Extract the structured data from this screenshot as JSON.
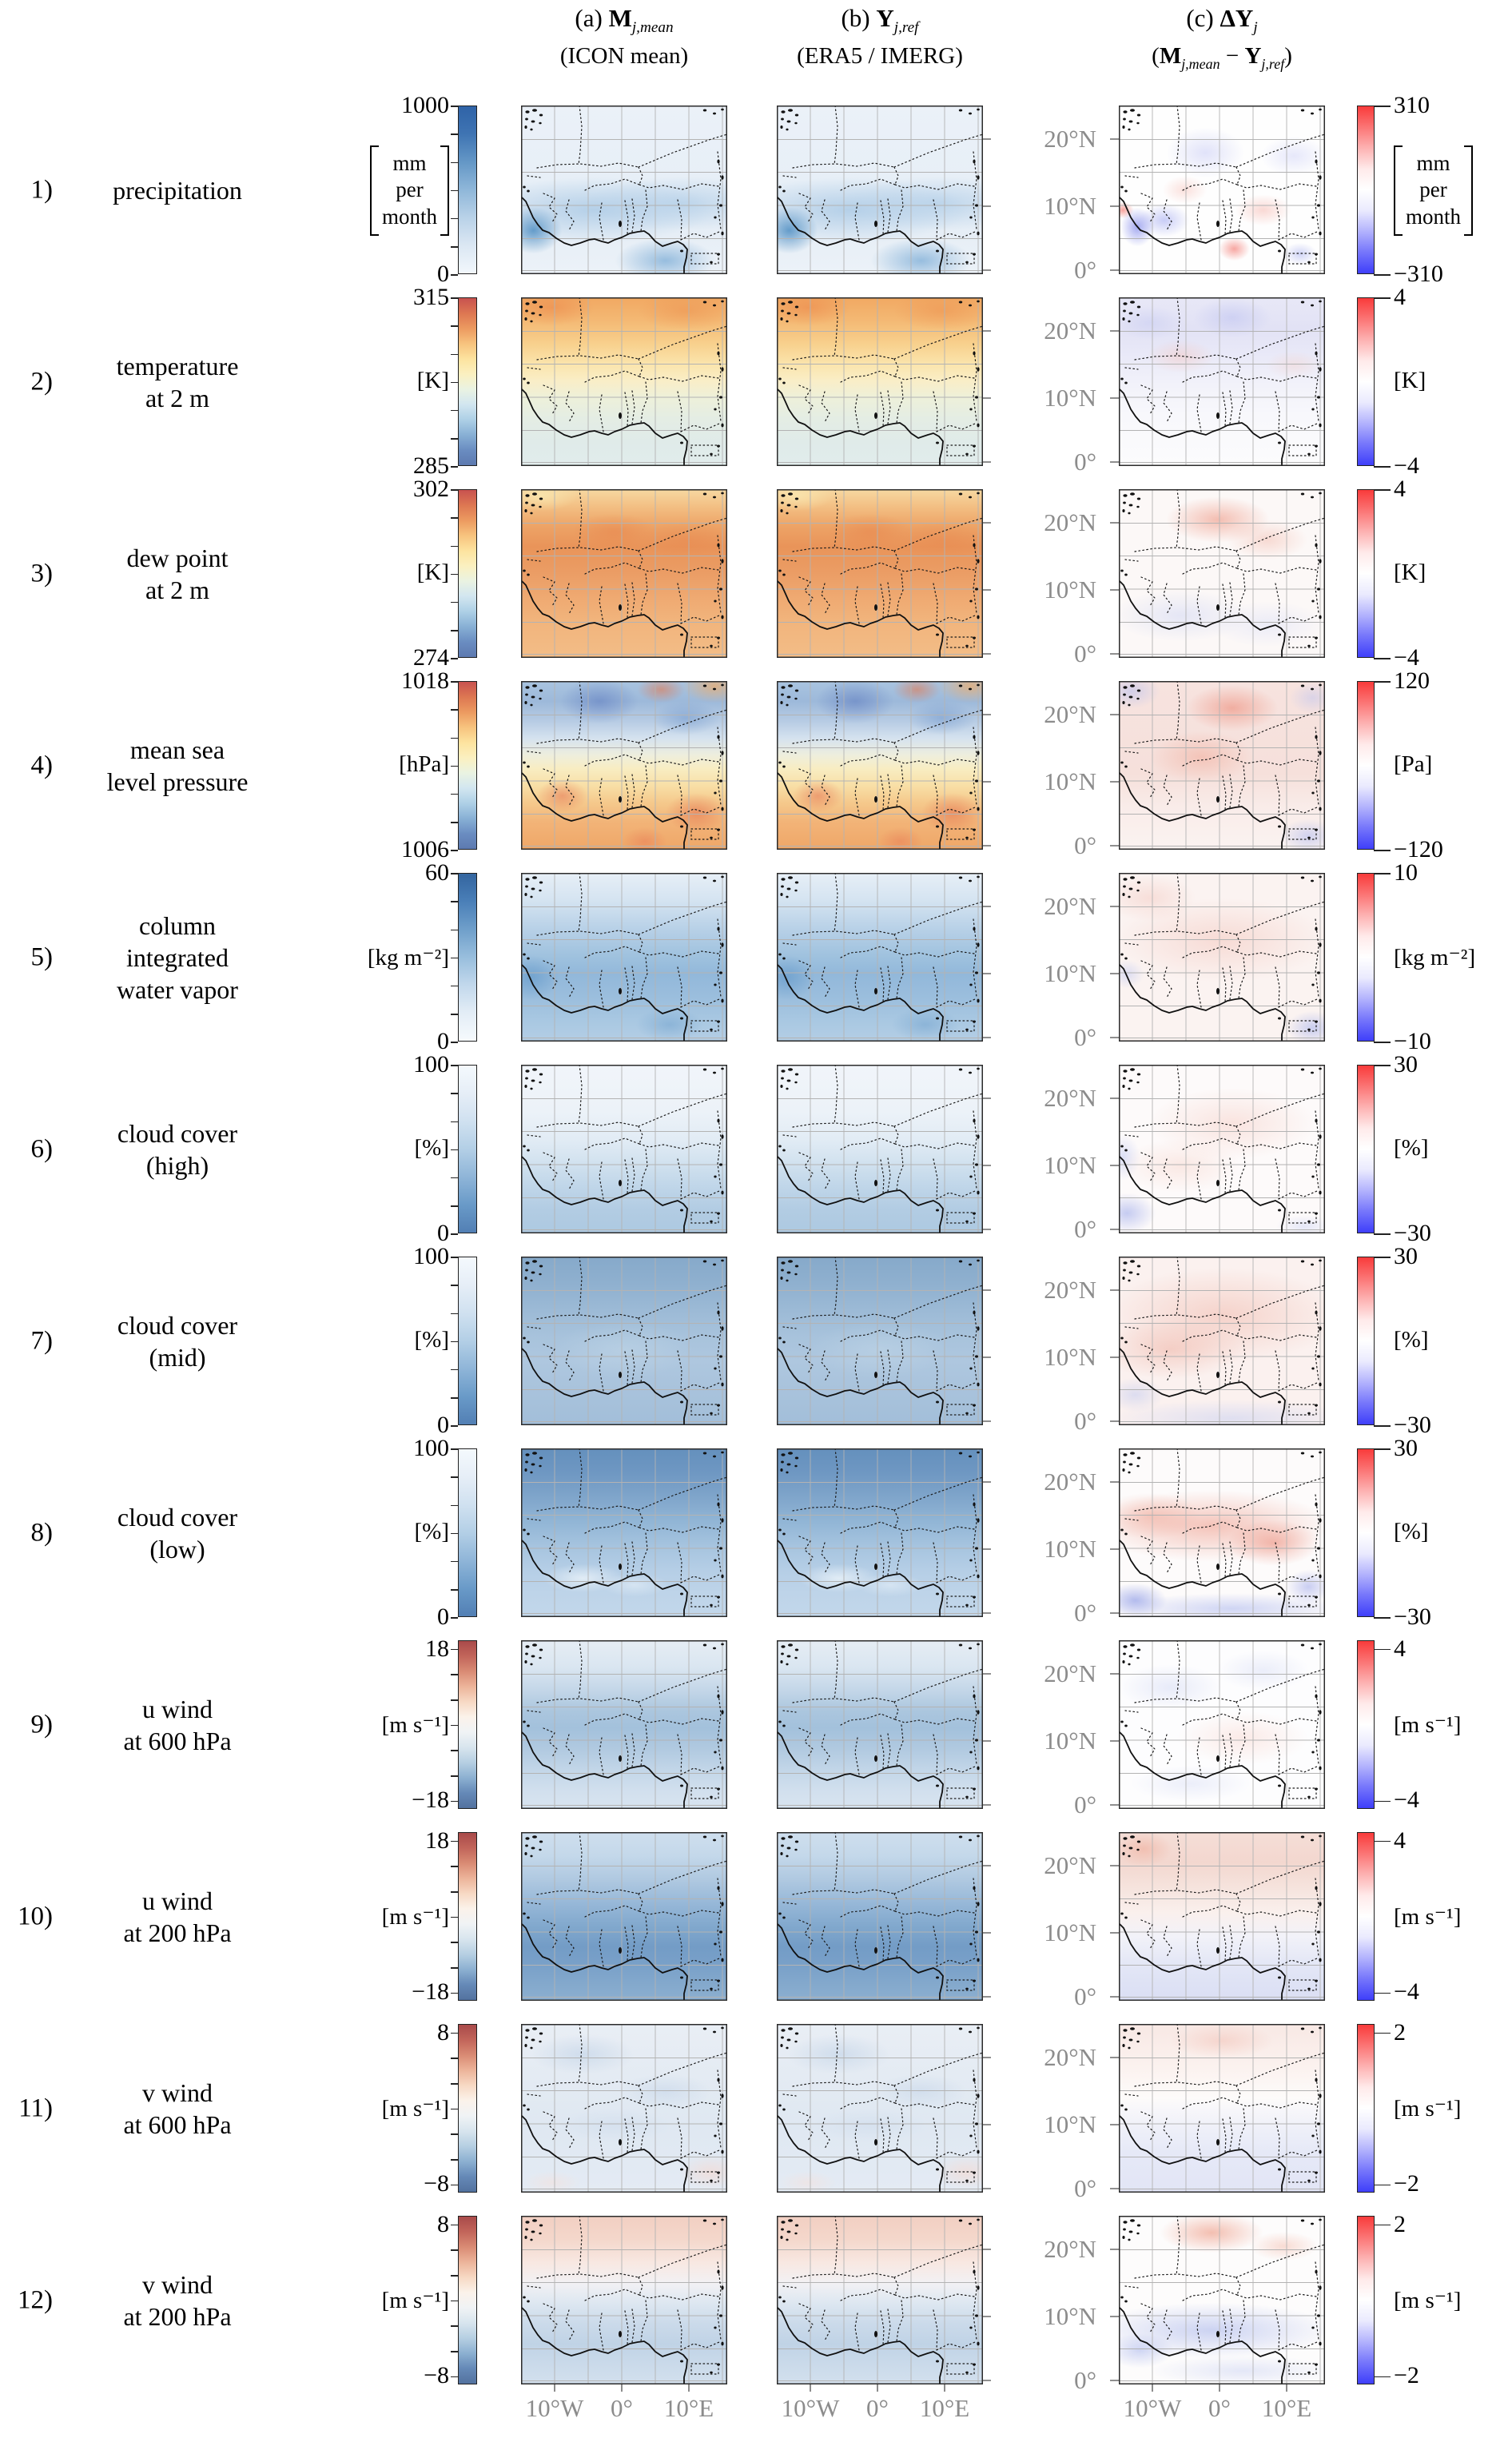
{
  "figure": {
    "headers": {
      "a": {
        "prefix": "(a) ",
        "symbol": "M",
        "sub": "j,mean",
        "line2": "(ICON mean)"
      },
      "b": {
        "prefix": "(b) ",
        "symbol": "Y",
        "sub": "j,ref",
        "line2": "(ERA5 / IMERG)"
      },
      "c": {
        "prefix": "(c) ",
        "symbol": "ΔY",
        "sub": "j",
        "line2": {
          "open": "(",
          "sym1": "M",
          "sub1": "j,mean",
          "mid": " − ",
          "sym2": "Y",
          "sub2": "j,ref",
          "close": ")"
        }
      }
    },
    "axes": {
      "lat": [
        "20°N",
        "10°N",
        "0°"
      ],
      "lon": [
        "10°W",
        "0°",
        "10°E"
      ]
    },
    "rows": [
      {
        "num": "1)",
        "label": [
          "precipitation"
        ],
        "left": {
          "max": "1000",
          "min": "0",
          "unit_lines": [
            "mm",
            "per",
            "month"
          ],
          "inset": false,
          "stops": [
            "#2f63a7",
            "#3f74b3",
            "#6497c6",
            "#8fb7d9",
            "#b9d2e8",
            "#dbe7f3",
            "#f2f7fc"
          ]
        },
        "right": {
          "max": "310",
          "min": "−310",
          "unit_lines": [
            "mm",
            "per",
            "month"
          ],
          "inset": false,
          "stops": [
            "#f93b3b",
            "#fb7575",
            "#fdb2b2",
            "#ffeaea",
            "#ffffff",
            "#eaeafe",
            "#b2b2fd",
            "#7575fb",
            "#3f3ffa"
          ]
        }
      },
      {
        "num": "2)",
        "label": [
          "temperature",
          "at 2 m"
        ],
        "left": {
          "max": "315",
          "min": "285",
          "unit_lines": [
            "[K]"
          ],
          "inset": false,
          "stops": [
            "#c8524f",
            "#dd7752",
            "#ec9a60",
            "#f7c37e",
            "#fde39f",
            "#fbf0c0",
            "#eaf3e2",
            "#d2e6f0",
            "#aed0e6",
            "#88b0d5",
            "#6a8dc1",
            "#5d7ab0"
          ]
        },
        "right": {
          "max": "4",
          "min": "−4",
          "unit_lines": [
            "[K]"
          ],
          "inset": false,
          "stops": [
            "#f93b3b",
            "#fb7575",
            "#fdb2b2",
            "#ffeaea",
            "#ffffff",
            "#eaeafe",
            "#b2b2fd",
            "#7575fb",
            "#3f3ffa"
          ]
        }
      },
      {
        "num": "3)",
        "label": [
          "dew point",
          "at 2 m"
        ],
        "left": {
          "max": "302",
          "min": "274",
          "unit_lines": [
            "[K]"
          ],
          "inset": false,
          "stops": [
            "#c8524f",
            "#dd7752",
            "#ec9a60",
            "#f7c37e",
            "#fde39f",
            "#fbf0c0",
            "#eaf3e2",
            "#d2e6f0",
            "#aed0e6",
            "#88b0d5",
            "#6a8dc1",
            "#5d7ab0"
          ]
        },
        "right": {
          "max": "4",
          "min": "−4",
          "unit_lines": [
            "[K]"
          ],
          "inset": false,
          "stops": [
            "#f93b3b",
            "#fb7575",
            "#fdb2b2",
            "#ffeaea",
            "#ffffff",
            "#eaeafe",
            "#b2b2fd",
            "#7575fb",
            "#3f3ffa"
          ]
        }
      },
      {
        "num": "4)",
        "label": [
          "mean sea",
          "level pressure"
        ],
        "left": {
          "max": "1018",
          "min": "1006",
          "unit_lines": [
            "[hPa]"
          ],
          "inset": false,
          "stops": [
            "#c8524f",
            "#dd7752",
            "#ec9a60",
            "#f7c37e",
            "#fde39f",
            "#fbf0c0",
            "#eaf3e2",
            "#d2e6f0",
            "#aed0e6",
            "#88b0d5",
            "#6a8dc1",
            "#5d7ab0"
          ]
        },
        "right": {
          "max": "120",
          "min": "−120",
          "unit_lines": [
            "[Pa]"
          ],
          "inset": false,
          "stops": [
            "#f93b3b",
            "#fb7575",
            "#fdb2b2",
            "#ffeaea",
            "#ffffff",
            "#eaeafe",
            "#b2b2fd",
            "#7575fb",
            "#3f3ffa"
          ]
        }
      },
      {
        "num": "5)",
        "label": [
          "column",
          "integrated",
          "water vapor"
        ],
        "left": {
          "max": "60",
          "min": "0",
          "unit_lines": [
            "[kg m⁻²]"
          ],
          "inset": false,
          "stops": [
            "#33659f",
            "#4a7fb8",
            "#6f9fca",
            "#98bedd",
            "#c2d8ec",
            "#e3edf6",
            "#f6fafd"
          ]
        },
        "right": {
          "max": "10",
          "min": "−10",
          "unit_lines": [
            "[kg m⁻²]"
          ],
          "inset": false,
          "stops": [
            "#f93b3b",
            "#fb7575",
            "#fdb2b2",
            "#ffeaea",
            "#ffffff",
            "#eaeafe",
            "#b2b2fd",
            "#7575fb",
            "#3f3ffa"
          ]
        }
      },
      {
        "num": "6)",
        "label": [
          "cloud cover",
          "(high)"
        ],
        "left": {
          "max": "100",
          "min": "0",
          "unit_lines": [
            "[%]"
          ],
          "inset": false,
          "stops": [
            "#f4f9fd",
            "#e6eef7",
            "#d0e1f0",
            "#b3cfe6",
            "#8fb5d8",
            "#699ac8",
            "#527fb4"
          ]
        },
        "right": {
          "max": "30",
          "min": "−30",
          "unit_lines": [
            "[%]"
          ],
          "inset": false,
          "stops": [
            "#f93b3b",
            "#fb7575",
            "#fdb2b2",
            "#ffeaea",
            "#ffffff",
            "#eaeafe",
            "#b2b2fd",
            "#7575fb",
            "#3f3ffa"
          ]
        }
      },
      {
        "num": "7)",
        "label": [
          "cloud cover",
          "(mid)"
        ],
        "left": {
          "max": "100",
          "min": "0",
          "unit_lines": [
            "[%]"
          ],
          "inset": false,
          "stops": [
            "#f4f9fd",
            "#e6eef7",
            "#d0e1f0",
            "#b3cfe6",
            "#8fb5d8",
            "#699ac8",
            "#527fb4"
          ]
        },
        "right": {
          "max": "30",
          "min": "−30",
          "unit_lines": [
            "[%]"
          ],
          "inset": false,
          "stops": [
            "#f93b3b",
            "#fb7575",
            "#fdb2b2",
            "#ffeaea",
            "#ffffff",
            "#eaeafe",
            "#b2b2fd",
            "#7575fb",
            "#3f3ffa"
          ]
        }
      },
      {
        "num": "8)",
        "label": [
          "cloud cover",
          "(low)"
        ],
        "left": {
          "max": "100",
          "min": "0",
          "unit_lines": [
            "[%]"
          ],
          "inset": false,
          "stops": [
            "#f4f9fd",
            "#e6eef7",
            "#d0e1f0",
            "#b3cfe6",
            "#8fb5d8",
            "#699ac8",
            "#527fb4"
          ]
        },
        "right": {
          "max": "30",
          "min": "−30",
          "unit_lines": [
            "[%]"
          ],
          "inset": false,
          "stops": [
            "#f93b3b",
            "#fb7575",
            "#fdb2b2",
            "#ffeaea",
            "#ffffff",
            "#eaeafe",
            "#b2b2fd",
            "#7575fb",
            "#3f3ffa"
          ]
        }
      },
      {
        "num": "9)",
        "label": [
          "u wind",
          "at 600 hPa"
        ],
        "left": {
          "max": "18",
          "min": "−18",
          "unit_lines": [
            "[m s⁻¹]"
          ],
          "inset": true,
          "stops": [
            "#a94a4a",
            "#c2655a",
            "#d98b74",
            "#ecb49a",
            "#f7d9c4",
            "#fbf2ea",
            "#f0f3f5",
            "#d8e5ee",
            "#b6cfe2",
            "#8cb0d1",
            "#6589b7",
            "#53729f"
          ]
        },
        "right": {
          "max": "4",
          "min": "−4",
          "unit_lines": [
            "[m s⁻¹]"
          ],
          "inset": true,
          "stops": [
            "#f93b3b",
            "#fb7575",
            "#fdb2b2",
            "#ffeaea",
            "#ffffff",
            "#eaeafe",
            "#b2b2fd",
            "#7575fb",
            "#3f3ffa"
          ]
        }
      },
      {
        "num": "10)",
        "label": [
          "u wind",
          "at 200 hPa"
        ],
        "left": {
          "max": "18",
          "min": "−18",
          "unit_lines": [
            "[m s⁻¹]"
          ],
          "inset": true,
          "stops": [
            "#a94a4a",
            "#c2655a",
            "#d98b74",
            "#ecb49a",
            "#f7d9c4",
            "#fbf2ea",
            "#f0f3f5",
            "#d8e5ee",
            "#b6cfe2",
            "#8cb0d1",
            "#6589b7",
            "#53729f"
          ]
        },
        "right": {
          "max": "4",
          "min": "−4",
          "unit_lines": [
            "[m s⁻¹]"
          ],
          "inset": true,
          "stops": [
            "#f93b3b",
            "#fb7575",
            "#fdb2b2",
            "#ffeaea",
            "#ffffff",
            "#eaeafe",
            "#b2b2fd",
            "#7575fb",
            "#3f3ffa"
          ]
        }
      },
      {
        "num": "11)",
        "label": [
          "v wind",
          "at 600 hPa"
        ],
        "left": {
          "max": "8",
          "min": "−8",
          "unit_lines": [
            "[m s⁻¹]"
          ],
          "inset": true,
          "stops": [
            "#a94a4a",
            "#c2655a",
            "#d98b74",
            "#ecb49a",
            "#f7d9c4",
            "#fbf2ea",
            "#f0f3f5",
            "#d8e5ee",
            "#b6cfe2",
            "#8cb0d1",
            "#6589b7",
            "#53729f"
          ]
        },
        "right": {
          "max": "2",
          "min": "−2",
          "unit_lines": [
            "[m s⁻¹]"
          ],
          "inset": true,
          "stops": [
            "#f93b3b",
            "#fb7575",
            "#fdb2b2",
            "#ffeaea",
            "#ffffff",
            "#eaeafe",
            "#b2b2fd",
            "#7575fb",
            "#3f3ffa"
          ]
        }
      },
      {
        "num": "12)",
        "label": [
          "v wind",
          "at 200 hPa"
        ],
        "left": {
          "max": "8",
          "min": "−8",
          "unit_lines": [
            "[m s⁻¹]"
          ],
          "inset": true,
          "stops": [
            "#a94a4a",
            "#c2655a",
            "#d98b74",
            "#ecb49a",
            "#f7d9c4",
            "#fbf2ea",
            "#f0f3f5",
            "#d8e5ee",
            "#b6cfe2",
            "#8cb0d1",
            "#6589b7",
            "#53729f"
          ]
        },
        "right": {
          "max": "2",
          "min": "−2",
          "unit_lines": [
            "[m s⁻¹]"
          ],
          "inset": true,
          "stops": [
            "#f93b3b",
            "#fb7575",
            "#fdb2b2",
            "#ffeaea",
            "#ffffff",
            "#eaeafe",
            "#b2b2fd",
            "#7575fb",
            "#3f3ffa"
          ]
        }
      }
    ],
    "colors": {
      "axis_label_gray": "#8c8c8c",
      "map_grid": "#b3b3b3",
      "coastline": "#111111",
      "diff_pos": "#f93b3b",
      "diff_neg": "#3f3ffa"
    }
  },
  "chart_data": {
    "type": "heatmap",
    "title": "12 variables × 3 panels: ICON ensemble mean, ERA5/IMERG reference, and their difference over West Africa",
    "columns": [
      "(a) M_j,mean (ICON mean)",
      "(b) Y_j,ref (ERA5 / IMERG)",
      "(c) ΔY_j (M_j,mean − Y_j,ref)"
    ],
    "xlabel_ticks": [
      "10°W",
      "0°",
      "10°E"
    ],
    "ylabel_ticks": [
      "0°",
      "10°N",
      "20°N"
    ],
    "grid": true,
    "legend_position": "colorbars left (absolute scale) and right (difference scale) of each row",
    "variables": [
      {
        "row": 1,
        "name": "precipitation",
        "unit": "mm per month",
        "scale_range": [
          0,
          1000
        ],
        "diff_range": [
          -310,
          310
        ],
        "scale_colormap": "Blues (dark=high)",
        "diff_colormap": "blue-white-red"
      },
      {
        "row": 2,
        "name": "temperature at 2 m",
        "unit": "K",
        "scale_range": [
          285,
          315
        ],
        "diff_range": [
          -4,
          4
        ],
        "scale_colormap": "blue-yellow-red",
        "diff_colormap": "blue-white-red"
      },
      {
        "row": 3,
        "name": "dew point at 2 m",
        "unit": "K",
        "scale_range": [
          274,
          302
        ],
        "diff_range": [
          -4,
          4
        ],
        "scale_colormap": "blue-yellow-red",
        "diff_colormap": "blue-white-red"
      },
      {
        "row": 4,
        "name": "mean sea level pressure",
        "unit": "hPa (diff: Pa)",
        "scale_range": [
          1006,
          1018
        ],
        "diff_range": [
          -120,
          120
        ],
        "scale_colormap": "blue-yellow-red",
        "diff_colormap": "blue-white-red"
      },
      {
        "row": 5,
        "name": "column integrated water vapor",
        "unit": "kg m⁻²",
        "scale_range": [
          0,
          60
        ],
        "diff_range": [
          -10,
          10
        ],
        "scale_colormap": "Blues (dark=high)",
        "diff_colormap": "blue-white-red"
      },
      {
        "row": 6,
        "name": "cloud cover (high)",
        "unit": "%",
        "scale_range": [
          0,
          100
        ],
        "diff_range": [
          -30,
          30
        ],
        "scale_colormap": "Blues reversed (dark=low)",
        "diff_colormap": "blue-white-red"
      },
      {
        "row": 7,
        "name": "cloud cover (mid)",
        "unit": "%",
        "scale_range": [
          0,
          100
        ],
        "diff_range": [
          -30,
          30
        ],
        "scale_colormap": "Blues reversed (dark=low)",
        "diff_colormap": "blue-white-red"
      },
      {
        "row": 8,
        "name": "cloud cover (low)",
        "unit": "%",
        "scale_range": [
          0,
          100
        ],
        "diff_range": [
          -30,
          30
        ],
        "scale_colormap": "Blues reversed (dark=low)",
        "diff_colormap": "blue-white-red"
      },
      {
        "row": 9,
        "name": "u wind at 600 hPa",
        "unit": "m s⁻¹",
        "scale_range": [
          -18,
          18
        ],
        "diff_range": [
          -4,
          4
        ],
        "scale_colormap": "red-white-blue diverging",
        "diff_colormap": "blue-white-red"
      },
      {
        "row": 10,
        "name": "u wind at 200 hPa",
        "unit": "m s⁻¹",
        "scale_range": [
          -18,
          18
        ],
        "diff_range": [
          -4,
          4
        ],
        "scale_colormap": "red-white-blue diverging",
        "diff_colormap": "blue-white-red"
      },
      {
        "row": 11,
        "name": "v wind at 600 hPa",
        "unit": "m s⁻¹",
        "scale_range": [
          -8,
          8
        ],
        "diff_range": [
          -2,
          2
        ],
        "scale_colormap": "red-white-blue diverging",
        "diff_colormap": "blue-white-red"
      },
      {
        "row": 12,
        "name": "v wind at 200 hPa",
        "unit": "m s⁻¹",
        "scale_range": [
          -8,
          8
        ],
        "diff_range": [
          -2,
          2
        ],
        "scale_colormap": "red-white-blue diverging",
        "diff_colormap": "blue-white-red"
      }
    ]
  }
}
